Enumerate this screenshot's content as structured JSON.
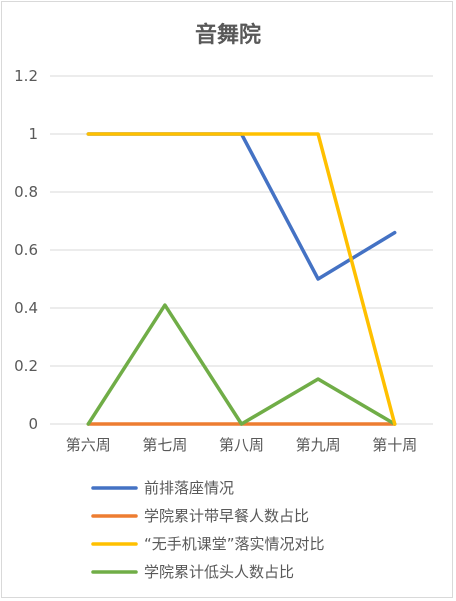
{
  "chart_data": {
    "type": "line",
    "title": "音舞院",
    "categories": [
      "第六周",
      "第七周",
      "第八周",
      "第九周",
      "第十周"
    ],
    "ylim": [
      0,
      1.2
    ],
    "yticks": [
      "0",
      "0.2",
      "0.4",
      "0.6",
      "0.8",
      "1",
      "1.2"
    ],
    "grid": true,
    "legend_position": "bottom",
    "series": [
      {
        "name": "前排落座情况",
        "color": "#4472c4",
        "values": [
          1,
          1,
          1,
          0.5,
          0.66
        ]
      },
      {
        "name": "学院累计带早餐人数占比",
        "color": "#ed7d31",
        "values": [
          0,
          0,
          0,
          0,
          0
        ]
      },
      {
        "name": "“无手机课堂”落实情况对比",
        "color": "#ffc000",
        "values": [
          1,
          1,
          1,
          1,
          0
        ]
      },
      {
        "name": "学院累计低头人数占比",
        "color": "#70ad47",
        "values": [
          0,
          0.41,
          0,
          0.155,
          0
        ]
      }
    ]
  }
}
